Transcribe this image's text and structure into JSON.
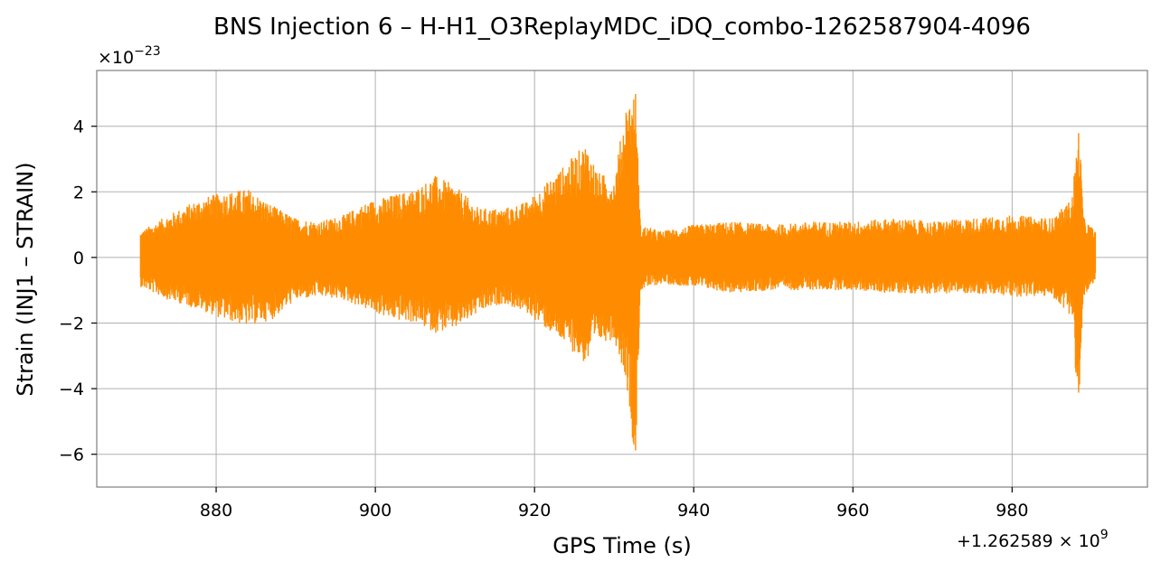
{
  "chart_data": {
    "type": "line",
    "title": "BNS Injection 6 – H-H1_O3ReplayMDC_iDQ_combo-1262587904-4096",
    "xlabel": "GPS Time (s)",
    "ylabel": "Strain (INJ1 – STRAIN)",
    "x_offset_label": "+1.262589×10^9",
    "y_scale_label": "×10^-23",
    "xlim": [
      865,
      997
    ],
    "ylim": [
      -7,
      5.7
    ],
    "x_ticks": [
      880,
      900,
      920,
      940,
      960,
      980
    ],
    "y_ticks": [
      4,
      2,
      0,
      -2,
      -4,
      -6
    ],
    "x_tick_labels": [
      "880",
      "900",
      "920",
      "940",
      "960",
      "980"
    ],
    "y_tick_labels": [
      "4",
      "2",
      "0",
      "−2",
      "−4",
      "−6"
    ],
    "grid": true,
    "series": [
      {
        "color": "#ff8c00",
        "x_range": [
          870.5,
          990.5
        ],
        "envelope": [
          [
            870.5,
            0.8,
            -0.9
          ],
          [
            874,
            1.3,
            -1.3
          ],
          [
            878,
            1.8,
            -1.6
          ],
          [
            881,
            2.0,
            -1.9
          ],
          [
            884,
            2.1,
            -2.1
          ],
          [
            887,
            1.6,
            -1.9
          ],
          [
            890,
            1.2,
            -1.3
          ],
          [
            893,
            1.1,
            -1.2
          ],
          [
            896,
            1.3,
            -1.3
          ],
          [
            899,
            1.7,
            -1.6
          ],
          [
            902,
            1.9,
            -1.9
          ],
          [
            905,
            2.1,
            -2.0
          ],
          [
            907.5,
            2.5,
            -2.3
          ],
          [
            910,
            2.2,
            -2.2
          ],
          [
            913,
            1.5,
            -1.7
          ],
          [
            916,
            1.5,
            -1.4
          ],
          [
            919,
            1.7,
            -1.7
          ],
          [
            922,
            2.4,
            -2.3
          ],
          [
            924.5,
            3.0,
            -2.8
          ],
          [
            926.5,
            3.5,
            -3.3
          ],
          [
            928,
            2.6,
            -2.6
          ],
          [
            930,
            2.4,
            -2.5
          ],
          [
            931.5,
            4.7,
            -3.7
          ],
          [
            932.7,
            5.1,
            -6.4
          ],
          [
            933.3,
            1.0,
            -1.0
          ],
          [
            936,
            0.8,
            -0.8
          ],
          [
            940,
            1.0,
            -0.9
          ],
          [
            945,
            1.1,
            -1.1
          ],
          [
            950,
            1.0,
            -1.0
          ],
          [
            955,
            1.1,
            -1.0
          ],
          [
            960,
            1.1,
            -1.0
          ],
          [
            965,
            1.2,
            -1.1
          ],
          [
            970,
            1.1,
            -1.1
          ],
          [
            975,
            1.2,
            -1.1
          ],
          [
            980,
            1.3,
            -1.2
          ],
          [
            985,
            1.2,
            -1.2
          ],
          [
            987.5,
            1.8,
            -1.8
          ],
          [
            988.4,
            4.1,
            -4.9
          ],
          [
            989,
            1.2,
            -1.2
          ],
          [
            990.5,
            0.8,
            -0.8
          ]
        ]
      }
    ]
  }
}
